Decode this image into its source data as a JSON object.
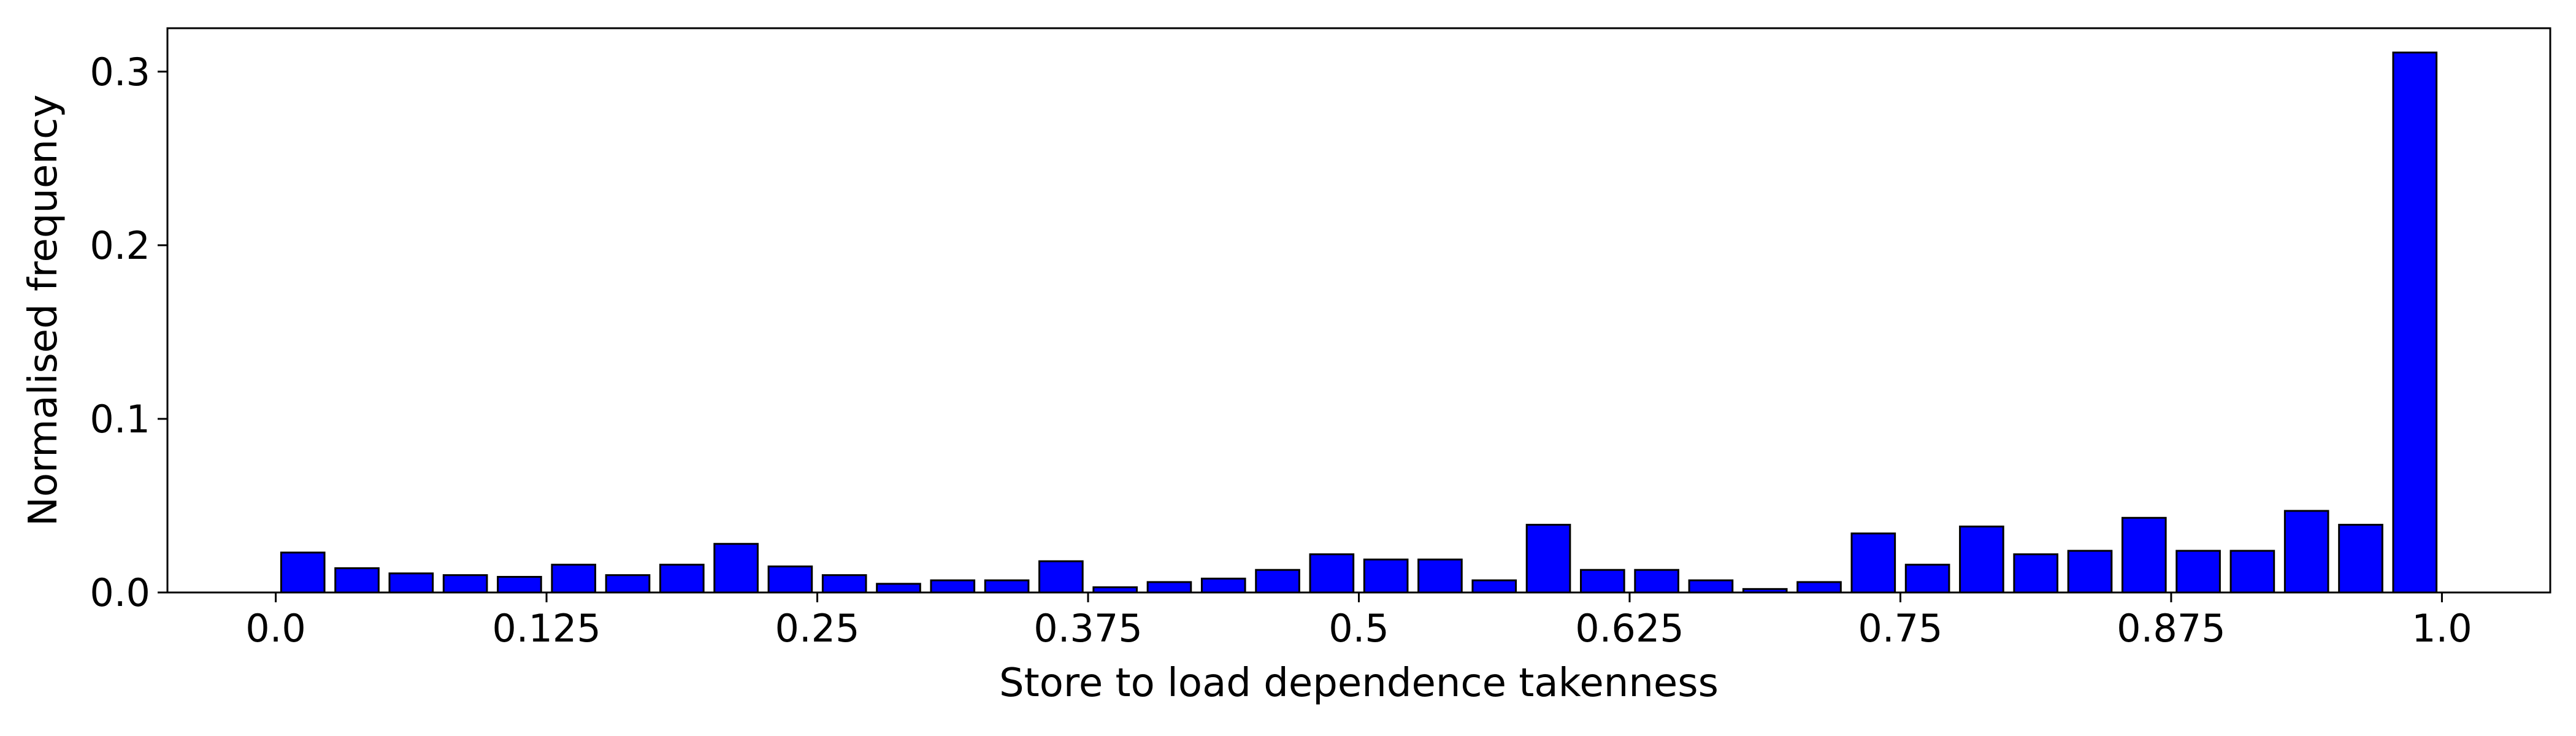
{
  "chart_data": {
    "type": "bar",
    "title": "",
    "xlabel": "Store to load dependence takenness",
    "ylabel": "Normalised frequency",
    "xlim": [
      -0.05,
      1.05
    ],
    "ylim": [
      0,
      0.325
    ],
    "xticks": [
      0.0,
      0.125,
      0.25,
      0.375,
      0.5,
      0.625,
      0.75,
      0.875,
      1.0
    ],
    "xtick_labels": [
      "0.0",
      "0.125",
      "0.25",
      "0.375",
      "0.5",
      "0.625",
      "0.75",
      "0.875",
      "1.0"
    ],
    "yticks": [
      0.0,
      0.1,
      0.2,
      0.3
    ],
    "ytick_labels": [
      "0.0",
      "0.1",
      "0.2",
      "0.3"
    ],
    "bar_width": 0.02,
    "bar_color": "#0000ff",
    "edge_color": "#000000",
    "grid": false,
    "legend": "none",
    "x": [
      0.0125,
      0.0375,
      0.0625,
      0.0875,
      0.1125,
      0.1375,
      0.1625,
      0.1875,
      0.2125,
      0.2375,
      0.2625,
      0.2875,
      0.3125,
      0.3375,
      0.3625,
      0.3875,
      0.4125,
      0.4375,
      0.4625,
      0.4875,
      0.5125,
      0.5375,
      0.5625,
      0.5875,
      0.6125,
      0.6375,
      0.6625,
      0.6875,
      0.7125,
      0.7375,
      0.7625,
      0.7875,
      0.8125,
      0.8375,
      0.8625,
      0.8875,
      0.9125,
      0.9375,
      0.9625,
      0.9875
    ],
    "values": [
      0.023,
      0.014,
      0.011,
      0.01,
      0.009,
      0.016,
      0.01,
      0.016,
      0.028,
      0.015,
      0.01,
      0.005,
      0.007,
      0.007,
      0.018,
      0.003,
      0.006,
      0.008,
      0.013,
      0.022,
      0.019,
      0.019,
      0.007,
      0.039,
      0.013,
      0.013,
      0.007,
      0.002,
      0.006,
      0.034,
      0.016,
      0.038,
      0.022,
      0.024,
      0.043,
      0.024,
      0.024,
      0.047,
      0.039,
      0.311
    ]
  }
}
